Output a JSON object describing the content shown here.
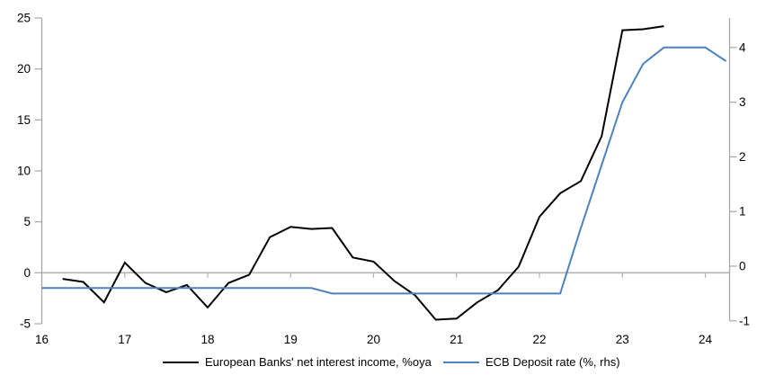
{
  "chart_data": {
    "type": "line",
    "title": "",
    "x_axis": {
      "ticks": [
        16,
        17,
        18,
        19,
        20,
        21,
        22,
        23,
        24
      ],
      "range": [
        16,
        24.29
      ]
    },
    "left_axis": {
      "ticks": [
        25,
        20,
        15,
        10,
        5,
        0,
        -5
      ],
      "range": [
        -5,
        25
      ]
    },
    "right_axis": {
      "ticks": [
        4,
        3,
        2,
        1,
        0,
        -1
      ],
      "range": [
        -1.07,
        4.54
      ]
    },
    "grid": "zero-line-only",
    "legend_position": "bottom",
    "series": [
      {
        "name": "European Banks' net interest income, %oya",
        "axis": "left",
        "color": "#000000",
        "x": [
          16.25,
          16.5,
          16.75,
          17,
          17.25,
          17.5,
          17.75,
          18,
          18.25,
          18.5,
          18.75,
          19,
          19.25,
          19.5,
          19.75,
          20,
          20.25,
          20.5,
          20.75,
          21,
          21.25,
          21.5,
          21.75,
          22,
          22.25,
          22.5,
          22.75,
          23,
          23.25,
          23.5
        ],
        "values": [
          -0.6,
          -0.9,
          -2.9,
          1.0,
          -1.0,
          -1.9,
          -1.2,
          -3.4,
          -1.0,
          -0.2,
          3.5,
          4.5,
          4.3,
          4.4,
          1.5,
          1.1,
          -0.8,
          -2.2,
          -4.6,
          -4.5,
          -2.9,
          -1.7,
          0.6,
          5.5,
          7.8,
          9.0,
          13.4,
          23.8,
          23.9,
          24.2
        ]
      },
      {
        "name": "ECB Deposit rate (%, rhs)",
        "axis": "right",
        "color": "#4E81BD",
        "x": [
          16,
          16.25,
          16.5,
          16.75,
          17,
          17.25,
          17.5,
          17.75,
          18,
          18.25,
          18.5,
          18.75,
          19,
          19.25,
          19.5,
          19.75,
          20,
          20.25,
          20.5,
          20.75,
          21,
          21.25,
          21.5,
          21.75,
          22,
          22.25,
          22.5,
          22.75,
          23,
          23.25,
          23.5,
          23.75,
          24,
          24.25
        ],
        "values": [
          -0.4,
          -0.4,
          -0.4,
          -0.4,
          -0.4,
          -0.4,
          -0.4,
          -0.4,
          -0.4,
          -0.4,
          -0.4,
          -0.4,
          -0.4,
          -0.4,
          -0.5,
          -0.5,
          -0.5,
          -0.5,
          -0.5,
          -0.5,
          -0.5,
          -0.5,
          -0.5,
          -0.5,
          -0.5,
          -0.5,
          0.7,
          1.85,
          3.0,
          3.7,
          4.0,
          4.0,
          4.0,
          3.75
        ]
      }
    ],
    "colors": {
      "axis_line": "#a6a6a6",
      "zero_line": "#b3b3b3",
      "tick_text": "#000000"
    }
  }
}
